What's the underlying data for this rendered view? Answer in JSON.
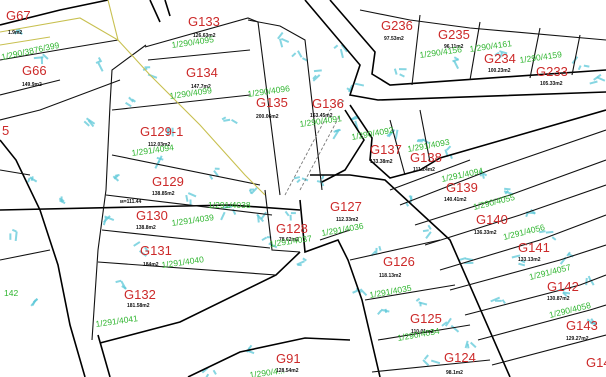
{
  "colors": {
    "background": "#ffffff",
    "boundary": "#111111",
    "parcel_id": "#cc2a2a",
    "sheet_ref": "#2fb52f",
    "survey_marks": "#5ec8d8",
    "old_boundary": "#c8c050"
  },
  "parcels": [
    {
      "id": "G67",
      "area": "1.9m2",
      "sheet": ""
    },
    {
      "id": "G66",
      "area": "149.9m2",
      "sheet": "1/290/3876/399"
    },
    {
      "id": "G133",
      "area": "126.63m2",
      "sheet": "1/290/4095"
    },
    {
      "id": "G134",
      "area": "147.7m2",
      "sheet": "1/290/4099"
    },
    {
      "id": "G135",
      "area": "200.06m2",
      "sheet": "1/290/4096"
    },
    {
      "id": "G136",
      "area": "163.45m2",
      "sheet": "1/290/4091"
    },
    {
      "id": "G236",
      "area": "97.53m2",
      "sheet": ""
    },
    {
      "id": "G235",
      "area": "96.11m2",
      "sheet": "1/290/4156"
    },
    {
      "id": "G234",
      "area": "100.23m2",
      "sheet": "1/290/4161"
    },
    {
      "id": "G233",
      "area": "105.33m2",
      "sheet": "1/290/4159"
    },
    {
      "id": "G129-1",
      "area": "112.03m2",
      "sheet": "1/291/4094"
    },
    {
      "id": "G129",
      "area": "138.85m2",
      "sheet": ""
    },
    {
      "id": "G130",
      "area": "138.8m2",
      "sheet": "1/291/4039"
    },
    {
      "id": "G137",
      "area": "133.38m2",
      "sheet": "1/290/4092"
    },
    {
      "id": "G138",
      "area": "111.24m2",
      "sheet": "1/291/4093"
    },
    {
      "id": "G139",
      "area": "140.41m2",
      "sheet": "1/291/4094"
    },
    {
      "id": "G140",
      "area": "136.33m2",
      "sheet": "1/290/4055"
    },
    {
      "id": "G141",
      "area": "133.13m2",
      "sheet": "1/291/4056"
    },
    {
      "id": "G142",
      "area": "130.87m2",
      "sheet": "1/291/4057"
    },
    {
      "id": "G143",
      "area": "129.27m2",
      "sheet": "1/290/4058"
    },
    {
      "id": "G128",
      "area": "78.62m2",
      "sheet": "1/291/4037"
    },
    {
      "id": "G127",
      "area": "112.33m2",
      "sheet": "1/291/4036"
    },
    {
      "id": "G126",
      "area": "118.13m2",
      "sheet": "1/291/4035"
    },
    {
      "id": "G125",
      "area": "110.01m2",
      "sheet": "1/290/4034"
    },
    {
      "id": "G124",
      "area": "98.1m2",
      "sheet": ""
    },
    {
      "id": "G131",
      "area": "184m2",
      "sheet": "1/291/4040"
    },
    {
      "id": "G132",
      "area": "181.58m2",
      "sheet": "1/291/4041"
    },
    {
      "id": "G91",
      "area": "128.54m2",
      "sheet": "1/290/4..."
    },
    {
      "id": "G14",
      "area": "",
      "sheet": ""
    }
  ],
  "fragments": [
    "5",
    "142",
    "1/291/4038",
    "м=111.44"
  ]
}
